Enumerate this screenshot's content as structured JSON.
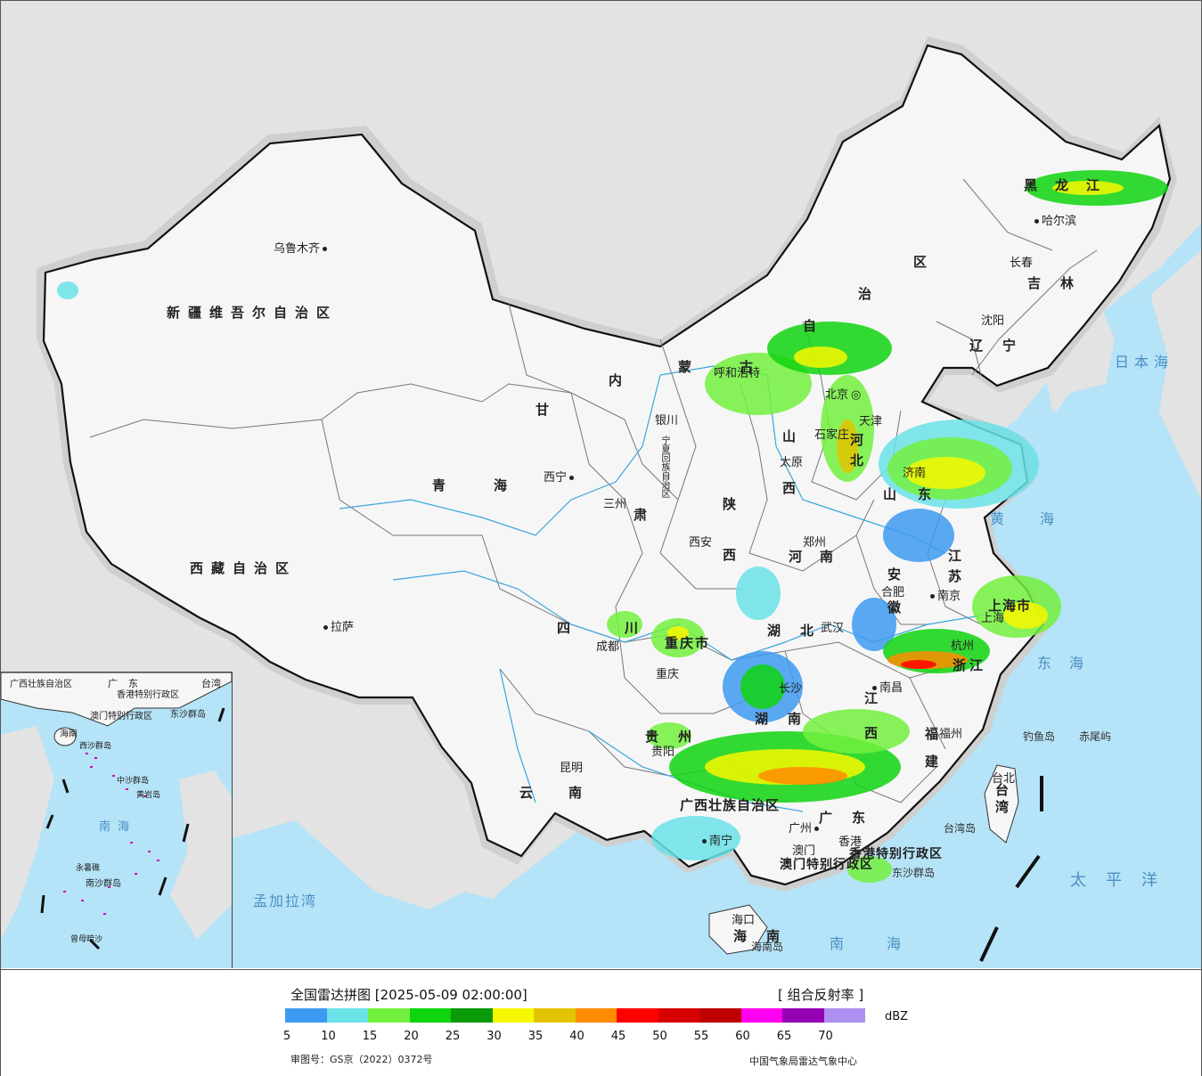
{
  "map": {
    "places": [
      {
        "id": "urumqi",
        "label": "乌鲁木齐"
      },
      {
        "id": "lhasa",
        "label": "拉萨"
      },
      {
        "id": "xining",
        "label": "西宁"
      },
      {
        "id": "lanzhou",
        "label": "三州"
      },
      {
        "id": "yinchuan",
        "label": "银川"
      },
      {
        "id": "hohhot",
        "label": "呼和浩特"
      },
      {
        "id": "beijing",
        "label": "北京"
      },
      {
        "id": "tianjin",
        "label": "天津"
      },
      {
        "id": "shijiazhuang",
        "label": "石家庄"
      },
      {
        "id": "taiyuan",
        "label": "太原"
      },
      {
        "id": "xian",
        "label": "西安"
      },
      {
        "id": "zhengzhou",
        "label": "郑州"
      },
      {
        "id": "chengdu",
        "label": "成都"
      },
      {
        "id": "chongqing",
        "label": "重庆"
      },
      {
        "id": "wuhan",
        "label": "武汉"
      },
      {
        "id": "hefei",
        "label": "合肥"
      },
      {
        "id": "nanjing",
        "label": "南京"
      },
      {
        "id": "shanghai",
        "label": "上海"
      },
      {
        "id": "hangzhou",
        "label": "杭州"
      },
      {
        "id": "changsha",
        "label": "长沙"
      },
      {
        "id": "nanchang",
        "label": "南昌"
      },
      {
        "id": "fuzhou",
        "label": "福州"
      },
      {
        "id": "guiyang",
        "label": "贵阳"
      },
      {
        "id": "kunming",
        "label": "昆明"
      },
      {
        "id": "nanning",
        "label": "南宁"
      },
      {
        "id": "guangzhou",
        "label": "广州"
      },
      {
        "id": "macau",
        "label": "澳门"
      },
      {
        "id": "hongkong",
        "label": "香港"
      },
      {
        "id": "haikou",
        "label": "海口"
      },
      {
        "id": "taipei",
        "label": "台北"
      },
      {
        "id": "shenyang",
        "label": "沈阳"
      },
      {
        "id": "changchun",
        "label": "长春"
      },
      {
        "id": "harbin",
        "label": "哈尔滨"
      },
      {
        "id": "jinan",
        "label": "济南"
      }
    ],
    "regions": [
      {
        "id": "xinjiang",
        "label": "新疆维吾尔自治区"
      },
      {
        "id": "tibet",
        "label": "西藏自治区"
      },
      {
        "id": "qinghai",
        "label": "青海"
      },
      {
        "id": "gansu",
        "label": "甘"
      },
      {
        "id": "gansu2",
        "label": "肃"
      },
      {
        "id": "sichuan",
        "label": "四"
      },
      {
        "id": "sichuan2",
        "label": "川"
      },
      {
        "id": "yunnan",
        "label": "云南"
      },
      {
        "id": "shaanxi",
        "label": "陕"
      },
      {
        "id": "shaanxi2",
        "label": "西"
      },
      {
        "id": "shanxi",
        "label": "山"
      },
      {
        "id": "shanxi2",
        "label": "西"
      },
      {
        "id": "henan",
        "label": "河南"
      },
      {
        "id": "hubei",
        "label": "湖北"
      },
      {
        "id": "hunan",
        "label": "湖南"
      },
      {
        "id": "jiangxi",
        "label": "江西"
      },
      {
        "id": "guizhou",
        "label": "贵州"
      },
      {
        "id": "guangxi",
        "label": "广西壮族自治区"
      },
      {
        "id": "guangdong",
        "label": "广东"
      },
      {
        "id": "fujian",
        "label": "福建"
      },
      {
        "id": "zhejiang",
        "label": "浙江"
      },
      {
        "id": "jiangsu",
        "label": "江苏"
      },
      {
        "id": "anhui",
        "label": "安徽"
      },
      {
        "id": "shandong",
        "label": "山东"
      },
      {
        "id": "hebei",
        "label": "河北"
      },
      {
        "id": "liaoning",
        "label": "辽宁"
      },
      {
        "id": "jilin",
        "label": "吉林"
      },
      {
        "id": "heilongjiang",
        "label": "黑龙江"
      },
      {
        "id": "neimenggu1",
        "label": "内"
      },
      {
        "id": "neimenggu2",
        "label": "蒙古"
      },
      {
        "id": "neimenggu3",
        "label": "自"
      },
      {
        "id": "neimenggu4",
        "label": "治"
      },
      {
        "id": "neimenggu5",
        "label": "区"
      },
      {
        "id": "ningxia",
        "label": "宁夏回族自治区"
      },
      {
        "id": "chongqing_r",
        "label": "重庆市"
      },
      {
        "id": "shanghai_r",
        "label": "上海市"
      },
      {
        "id": "hainan",
        "label": "海南"
      },
      {
        "id": "taiwan",
        "label": "台湾"
      },
      {
        "id": "hk_sar",
        "label": "香港特别行政区"
      },
      {
        "id": "macau_sar",
        "label": "澳门特别行政区"
      }
    ],
    "seas": [
      {
        "id": "japan_sea",
        "label": "日本海"
      },
      {
        "id": "yellow_sea",
        "label": "黄海"
      },
      {
        "id": "east_sea",
        "label": "东海"
      },
      {
        "id": "pacific",
        "label": "太平洋"
      },
      {
        "id": "south_sea",
        "label": "南海"
      },
      {
        "id": "bengal",
        "label": "孟加拉湾"
      }
    ],
    "islands": [
      {
        "id": "diaoyu",
        "label": "钓鱼岛"
      },
      {
        "id": "chiwei",
        "label": "赤尾屿"
      },
      {
        "id": "taiwan_island",
        "label": "台湾岛"
      },
      {
        "id": "dongsha",
        "label": "东沙群岛"
      },
      {
        "id": "hainan_island",
        "label": "海南岛"
      }
    ]
  },
  "inset": {
    "labels": [
      {
        "id": "guangxi",
        "label": "广西壮族自治区"
      },
      {
        "id": "guangdong",
        "label": "广东"
      },
      {
        "id": "taiwan",
        "label": "台湾"
      },
      {
        "id": "hk",
        "label": "香港特别行政区"
      },
      {
        "id": "macau",
        "label": "澳门特别行政区"
      },
      {
        "id": "dongsha",
        "label": "东沙群岛"
      },
      {
        "id": "hainan",
        "label": "海南"
      },
      {
        "id": "xisha",
        "label": "西沙群岛"
      },
      {
        "id": "zhongsha",
        "label": "中沙群岛"
      },
      {
        "id": "huangyan",
        "label": "黄岩岛"
      },
      {
        "id": "nansha",
        "label": "南沙群岛"
      },
      {
        "id": "yongshu",
        "label": "永暑礁"
      },
      {
        "id": "zengmu",
        "label": "曾母暗沙"
      }
    ],
    "sea_label": "南海"
  },
  "legend": {
    "title": "全国雷达拼图 [2025-05-09 02:00:00]",
    "product": "[ 组合反射率 ]",
    "unit": "dBZ",
    "colors": [
      "#3d9af0",
      "#6ae2e8",
      "#73f03e",
      "#0fd40f",
      "#0a9a0a",
      "#f7f700",
      "#e3c400",
      "#ff8c00",
      "#ff0000",
      "#d60000",
      "#c00000",
      "#ff00f0",
      "#9400b4",
      "#ad90f0"
    ],
    "ticks": [
      "5",
      "10",
      "15",
      "20",
      "25",
      "30",
      "35",
      "40",
      "45",
      "50",
      "55",
      "60",
      "65",
      "70"
    ],
    "review_number": "审图号：GS京（2022）0372号",
    "source": "中国气象局雷达气象中心"
  }
}
